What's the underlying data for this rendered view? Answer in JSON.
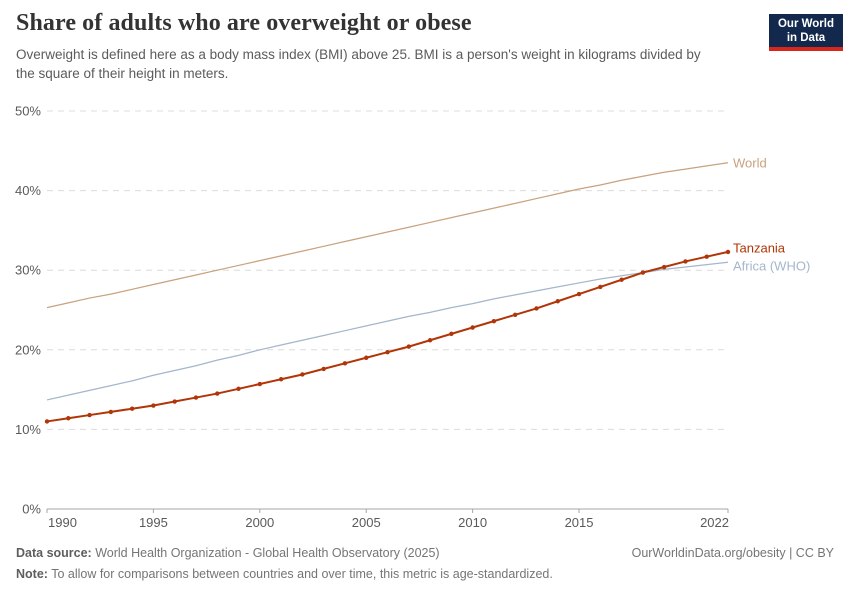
{
  "header": {
    "title": "Share of adults who are overweight or obese",
    "subtitle": "Overweight is defined here as a body mass index (BMI) above 25. BMI is a person's weight in kilograms divided by the square of their height in meters.",
    "logo": {
      "line1": "Our World",
      "line2": "in Data",
      "bg_color": "#12294D",
      "stripe_color": "#D6271C"
    }
  },
  "footer": {
    "datasource_label": "Data source:",
    "datasource_text": "World Health Organization - Global Health Observatory (2025)",
    "note_label": "Note:",
    "note_text": "To allow for comparisons between countries and over time, this metric is age-standardized.",
    "credit": "OurWorldinData.org/obesity | CC BY"
  },
  "chart_data": {
    "type": "line",
    "title": "Share of adults who are overweight or obese",
    "xlabel": "",
    "ylabel": "",
    "xlim": [
      1990,
      2022
    ],
    "ylim": [
      0,
      50
    ],
    "xticks": [
      1990,
      1995,
      2000,
      2005,
      2010,
      2015,
      2022
    ],
    "yticks": [
      0,
      10,
      20,
      30,
      40,
      50
    ],
    "ytick_suffix": "%",
    "grid": "horizontal-dashed",
    "legend_position": "right-end-labels",
    "x": [
      1990,
      1991,
      1992,
      1993,
      1994,
      1995,
      1996,
      1997,
      1998,
      1999,
      2000,
      2001,
      2002,
      2003,
      2004,
      2005,
      2006,
      2007,
      2008,
      2009,
      2010,
      2011,
      2012,
      2013,
      2014,
      2015,
      2016,
      2017,
      2018,
      2019,
      2020,
      2021,
      2022
    ],
    "series": [
      {
        "name": "World",
        "color": "#C9A27E",
        "marker": false,
        "values": [
          25.3,
          25.9,
          26.5,
          27.0,
          27.6,
          28.2,
          28.8,
          29.4,
          30.0,
          30.6,
          31.2,
          31.8,
          32.4,
          33.0,
          33.6,
          34.2,
          34.8,
          35.4,
          36.0,
          36.6,
          37.2,
          37.8,
          38.4,
          39.0,
          39.6,
          40.2,
          40.7,
          41.3,
          41.8,
          42.3,
          42.7,
          43.1,
          43.5
        ]
      },
      {
        "name": "Africa (WHO)",
        "color": "#A5B6CC",
        "marker": false,
        "values": [
          13.7,
          14.3,
          14.9,
          15.5,
          16.1,
          16.8,
          17.4,
          18.0,
          18.7,
          19.3,
          20.0,
          20.6,
          21.2,
          21.8,
          22.4,
          23.0,
          23.6,
          24.2,
          24.7,
          25.3,
          25.8,
          26.4,
          26.9,
          27.4,
          27.9,
          28.4,
          28.9,
          29.3,
          29.7,
          30.1,
          30.4,
          30.7,
          31.0
        ]
      },
      {
        "name": "Tanzania",
        "color": "#B13507",
        "marker": true,
        "values": [
          11.0,
          11.4,
          11.8,
          12.2,
          12.6,
          13.0,
          13.5,
          14.0,
          14.5,
          15.1,
          15.7,
          16.3,
          16.9,
          17.6,
          18.3,
          19.0,
          19.7,
          20.4,
          21.2,
          22.0,
          22.8,
          23.6,
          24.4,
          25.2,
          26.1,
          27.0,
          27.9,
          28.8,
          29.7,
          30.4,
          31.1,
          31.7,
          32.3
        ]
      }
    ]
  }
}
